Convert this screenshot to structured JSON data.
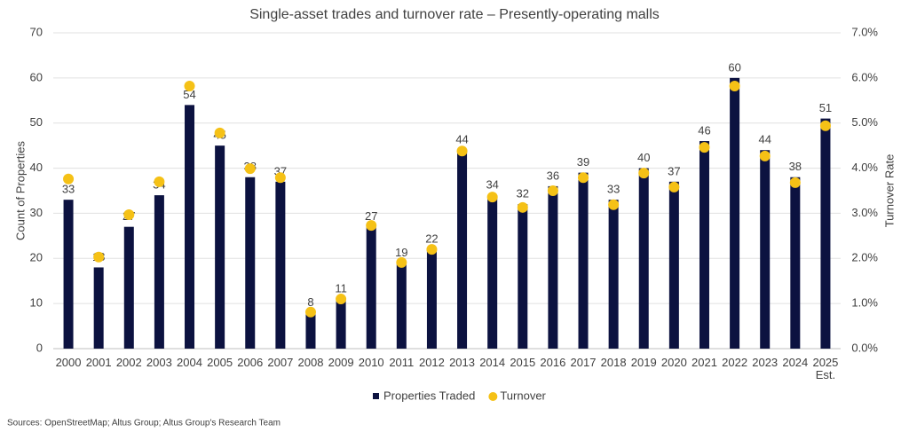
{
  "chart_data": {
    "type": "bar_scatter",
    "title": "Single-asset trades and turnover rate – Presently-operating malls",
    "categories": [
      "2000",
      "2001",
      "2002",
      "2003",
      "2004",
      "2005",
      "2006",
      "2007",
      "2008",
      "2009",
      "2010",
      "2011",
      "2012",
      "2013",
      "2014",
      "2015",
      "2016",
      "2017",
      "2018",
      "2019",
      "2020",
      "2021",
      "2022",
      "2023",
      "2024",
      "2025 Est."
    ],
    "series": [
      {
        "name": "Properties Traded",
        "color": "#0c1240",
        "type": "bar",
        "values": [
          33,
          18,
          27,
          34,
          54,
          45,
          38,
          37,
          8,
          11,
          27,
          19,
          22,
          44,
          34,
          32,
          36,
          39,
          33,
          40,
          37,
          46,
          60,
          44,
          38,
          51
        ]
      },
      {
        "name": "Turnover",
        "color": "#f5c116",
        "type": "scatter",
        "axis": "y2",
        "values": [
          3.76,
          2.03,
          2.97,
          3.7,
          5.82,
          4.78,
          3.99,
          3.79,
          0.81,
          1.1,
          2.73,
          1.91,
          2.2,
          4.38,
          3.36,
          3.13,
          3.5,
          3.79,
          3.19,
          3.89,
          3.58,
          4.46,
          5.82,
          4.27,
          3.68,
          4.94
        ]
      }
    ],
    "y_label": "Count of Properties",
    "y2_label": "Turnover Rate",
    "ylim": [
      0,
      70
    ],
    "yticks": [
      0,
      10,
      20,
      30,
      40,
      50,
      60,
      70
    ],
    "y2lim": [
      0,
      7
    ],
    "y2ticks": [
      {
        "value": 0,
        "label": "0.0%"
      },
      {
        "value": 1,
        "label": "1.0%"
      },
      {
        "value": 2,
        "label": "2.0%"
      },
      {
        "value": 3,
        "label": "3.0%"
      },
      {
        "value": 4,
        "label": "4.0%"
      },
      {
        "value": 5,
        "label": "5.0%"
      },
      {
        "value": 6,
        "label": "6.0%"
      },
      {
        "value": 7,
        "label": "7.0%"
      }
    ],
    "grid": true,
    "legend": "bottom",
    "source": "Sources: OpenStreetMap; Altus Group; Altus Group's Research Team"
  }
}
